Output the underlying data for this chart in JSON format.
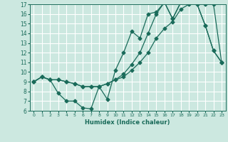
{
  "xlabel": "Humidex (Indice chaleur)",
  "bg_color": "#cce8e0",
  "grid_color": "#ffffff",
  "line_color": "#1a6b5a",
  "xlim": [
    -0.5,
    23.5
  ],
  "ylim": [
    6,
    17
  ],
  "xticks": [
    0,
    1,
    2,
    3,
    4,
    5,
    6,
    7,
    8,
    9,
    10,
    11,
    12,
    13,
    14,
    15,
    16,
    17,
    18,
    19,
    20,
    21,
    22,
    23
  ],
  "yticks": [
    6,
    7,
    8,
    9,
    10,
    11,
    12,
    13,
    14,
    15,
    16,
    17
  ],
  "line1_x": [
    0,
    1,
    2,
    3,
    4,
    5,
    6,
    7,
    8,
    9,
    10,
    11,
    12,
    13,
    14,
    15,
    16,
    17,
    18,
    19,
    20,
    21,
    22,
    23
  ],
  "line1_y": [
    9,
    9.5,
    9.2,
    7.8,
    7.0,
    7.0,
    6.3,
    6.2,
    8.5,
    7.2,
    10.2,
    12.0,
    14.2,
    13.5,
    16.0,
    16.2,
    17.2,
    15.5,
    17.2,
    17.2,
    17.0,
    14.8,
    12.2,
    11.0
  ],
  "line2_x": [
    0,
    1,
    2,
    3,
    4,
    5,
    6,
    7,
    8,
    9,
    10,
    11,
    12,
    13,
    14,
    15,
    16,
    17,
    18,
    19,
    20,
    21,
    22,
    23
  ],
  "line2_y": [
    9,
    9.5,
    9.2,
    9.2,
    9.0,
    8.8,
    8.5,
    8.5,
    8.5,
    8.8,
    9.2,
    9.5,
    10.2,
    11.0,
    12.0,
    13.5,
    14.5,
    15.2,
    16.5,
    17.0,
    17.2,
    17.0,
    17.0,
    11.0
  ],
  "line3_x": [
    0,
    1,
    2,
    3,
    4,
    5,
    6,
    7,
    8,
    9,
    10,
    11,
    12,
    13,
    14,
    15,
    16,
    17,
    18,
    19,
    20,
    21,
    22,
    23
  ],
  "line3_y": [
    9,
    9.5,
    9.2,
    9.2,
    9.0,
    8.8,
    8.5,
    8.5,
    8.5,
    8.8,
    9.2,
    9.8,
    10.8,
    12.0,
    14.0,
    16.0,
    17.2,
    15.5,
    17.2,
    17.2,
    17.0,
    14.8,
    12.2,
    11.0
  ]
}
